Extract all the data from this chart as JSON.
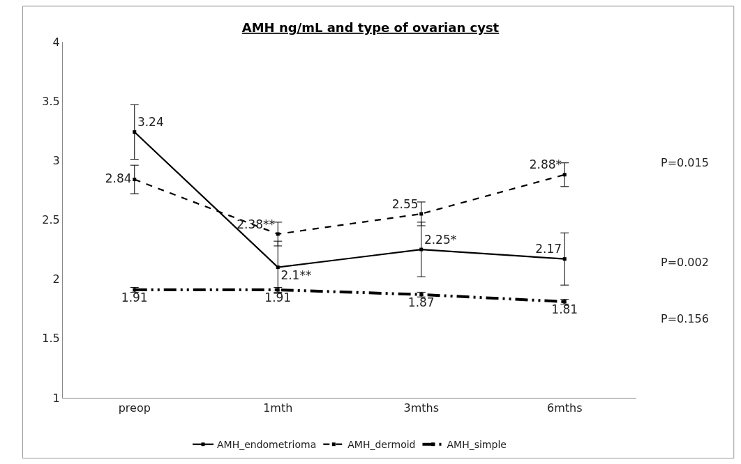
{
  "chart_data": {
    "type": "line",
    "title": "AMH ng/mL and type of ovarian cyst",
    "categories": [
      "preop",
      "1mth",
      "3mths",
      "6mths"
    ],
    "series": [
      {
        "name": "AMH_endometrioma",
        "color": "#000000",
        "line_style": "solid",
        "values": [
          3.24,
          2.1,
          2.25,
          2.17
        ],
        "errors": [
          0.23,
          0.22,
          0.23,
          0.22
        ],
        "value_labels": [
          "3.24",
          "2.1**",
          "2.25*",
          "2.17"
        ]
      },
      {
        "name": "AMH_dermoid",
        "color": "#000000",
        "line_style": "dashed",
        "values": [
          2.84,
          2.38,
          2.55,
          2.88
        ],
        "errors": [
          0.12,
          0.1,
          0.1,
          0.1
        ],
        "value_labels": [
          "2.84",
          "2.38**",
          "2.55",
          "2.88*"
        ]
      },
      {
        "name": "AMH_simple",
        "color": "#000000",
        "line_style": "dashdot",
        "values": [
          1.91,
          1.91,
          1.87,
          1.81
        ],
        "errors": [
          0.02,
          0.02,
          0.02,
          0.02
        ],
        "value_labels": [
          "1.91",
          "1.91",
          "1.87",
          "1.81"
        ]
      }
    ],
    "ylim": [
      1,
      4
    ],
    "yticks": [
      1,
      1.5,
      2,
      2.5,
      3,
      3.5,
      4
    ],
    "grid": false,
    "legend": "bottom",
    "marker": "square",
    "annotations": [
      "P=0.015",
      "P=0.002",
      "P=0.156"
    ]
  }
}
